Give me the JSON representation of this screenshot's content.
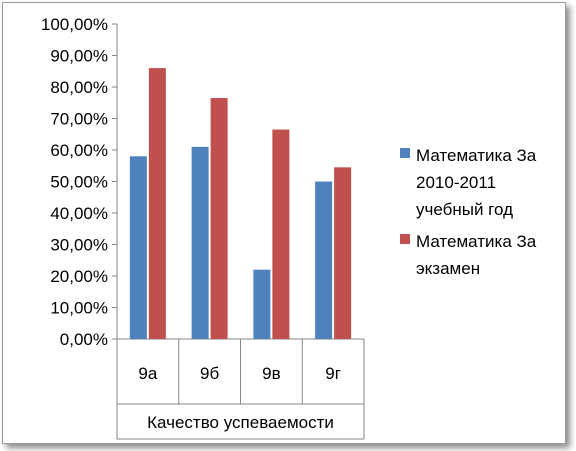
{
  "chart_data": {
    "type": "bar",
    "group_label": "Качество успеваемости",
    "categories": [
      "9а",
      "9б",
      "9в",
      "9г"
    ],
    "series": [
      {
        "name_lines": [
          "Математика За",
          "2010-2011",
          "учебный год"
        ],
        "values": [
          58,
          61,
          22,
          50
        ],
        "color": "#4F81BD"
      },
      {
        "name_lines": [
          "Математика За",
          "экзамен"
        ],
        "values": [
          86,
          76.5,
          66.5,
          54.5
        ],
        "color": "#C0504D"
      }
    ],
    "yticks": [
      "0,00%",
      "10,00%",
      "20,00%",
      "30,00%",
      "40,00%",
      "50,00%",
      "60,00%",
      "70,00%",
      "80,00%",
      "90,00%",
      "100,00%"
    ],
    "ylim": [
      0,
      100
    ],
    "grid": false,
    "legend": "right"
  }
}
